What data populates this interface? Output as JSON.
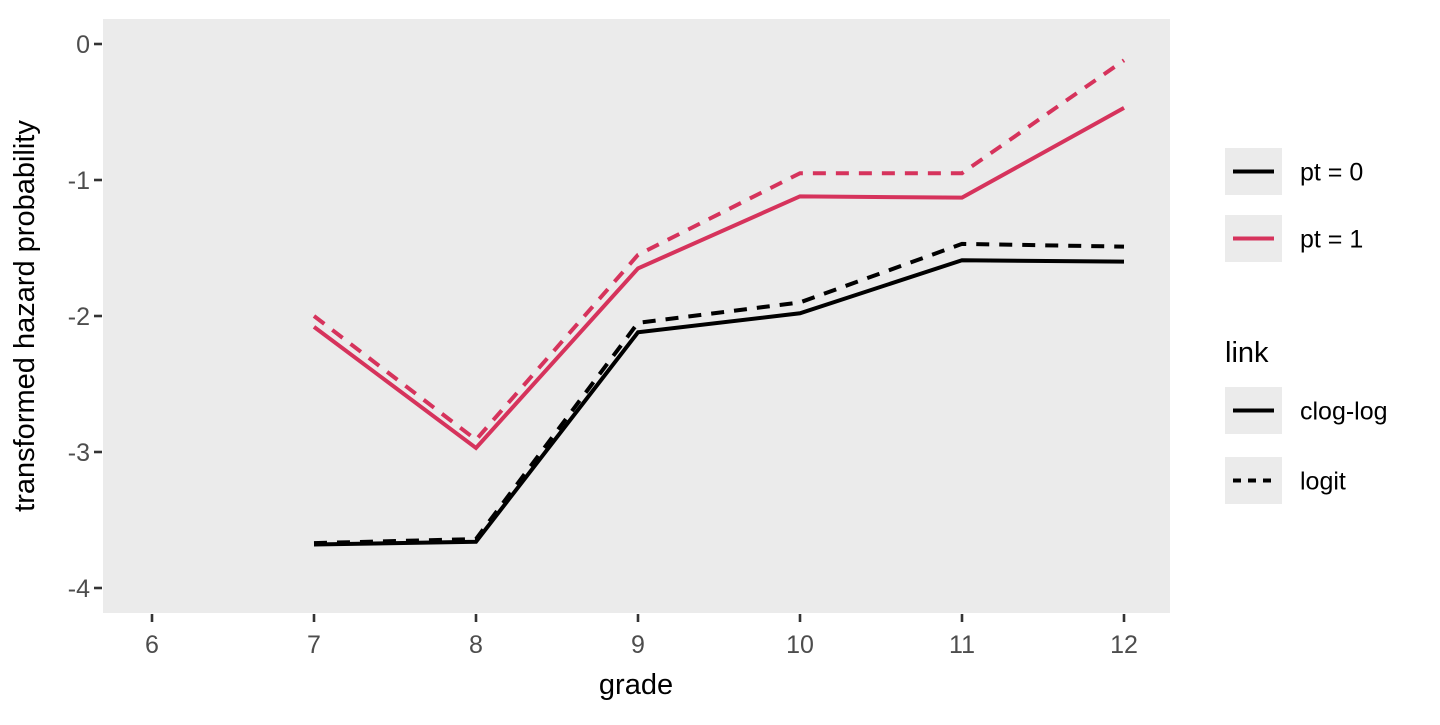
{
  "chart_data": {
    "type": "line",
    "title": "",
    "xlabel": "grade",
    "ylabel": "transformed hazard probability",
    "x_ticks": [
      6,
      7,
      8,
      9,
      10,
      11,
      12
    ],
    "y_ticks": [
      0,
      -1,
      -2,
      -3,
      -4
    ],
    "xlim": [
      5.7,
      12.3
    ],
    "ylim": [
      -4.18,
      0.18
    ],
    "grid": false,
    "legend_position": "right",
    "panel_bg": "#EBEBEB",
    "x": [
      7,
      8,
      9,
      10,
      11,
      12
    ],
    "series": [
      {
        "name": "pt = 0, clog-log",
        "pt": "0",
        "link": "clog-log",
        "color": "#000000",
        "dash": "solid",
        "values": [
          -3.68,
          -3.66,
          -2.12,
          -1.98,
          -1.59,
          -1.6
        ]
      },
      {
        "name": "pt = 0, logit",
        "pt": "0",
        "link": "logit",
        "color": "#000000",
        "dash": "dashed",
        "values": [
          -3.67,
          -3.64,
          -2.05,
          -1.9,
          -1.47,
          -1.49
        ]
      },
      {
        "name": "pt = 1, clog-log",
        "pt": "1",
        "link": "clog-log",
        "color": "#D6335C",
        "dash": "solid",
        "values": [
          -2.08,
          -2.97,
          -1.65,
          -1.12,
          -1.13,
          -0.47
        ]
      },
      {
        "name": "pt = 1, logit",
        "pt": "1",
        "link": "logit",
        "color": "#D6335C",
        "dash": "dashed",
        "values": [
          -2.0,
          -2.91,
          -1.55,
          -0.95,
          -0.95,
          -0.12
        ]
      }
    ]
  },
  "legend": {
    "color_group": {
      "title": "",
      "items": [
        {
          "label": "pt = 0",
          "color": "#000000",
          "dash": "solid"
        },
        {
          "label": "pt = 1",
          "color": "#D6335C",
          "dash": "solid"
        }
      ]
    },
    "linetype_group": {
      "title": "link",
      "items": [
        {
          "label": "clog-log",
          "color": "#000000",
          "dash": "solid"
        },
        {
          "label": "logit",
          "color": "#000000",
          "dash": "dashed"
        }
      ]
    }
  },
  "colors": {
    "panel_bg": "#EBEBEB",
    "legend_key_bg": "#EBEBEB",
    "tick_mark": "#333333",
    "tick_text": "#4d4d4d",
    "accent_red": "#D6335C",
    "black": "#000000"
  }
}
